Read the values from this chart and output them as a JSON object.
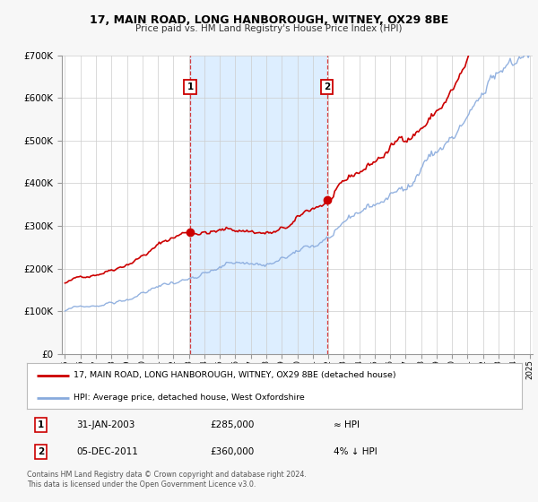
{
  "title": "17, MAIN ROAD, LONG HANBOROUGH, WITNEY, OX29 8BE",
  "subtitle": "Price paid vs. HM Land Registry's House Price Index (HPI)",
  "background_color": "#f7f7f7",
  "plot_bg_color": "#ffffff",
  "shaded_region_color": "#ddeeff",
  "grid_color": "#cccccc",
  "red_line_color": "#cc0000",
  "blue_line_color": "#88aadd",
  "marker_color": "#cc0000",
  "ylim": [
    0,
    700000
  ],
  "yticks": [
    0,
    100000,
    200000,
    300000,
    400000,
    500000,
    600000,
    700000
  ],
  "ytick_labels": [
    "£0",
    "£100K",
    "£200K",
    "£300K",
    "£400K",
    "£500K",
    "£600K",
    "£700K"
  ],
  "year_start": 1995,
  "year_end": 2025,
  "transaction1_date": 2003.08,
  "transaction1_price": 285000,
  "transaction1_label": "1",
  "transaction2_date": 2011.92,
  "transaction2_price": 360000,
  "transaction2_label": "2",
  "legend_red_label": "17, MAIN ROAD, LONG HANBOROUGH, WITNEY, OX29 8BE (detached house)",
  "legend_blue_label": "HPI: Average price, detached house, West Oxfordshire",
  "table_row1_num": "1",
  "table_row1_date": "31-JAN-2003",
  "table_row1_price": "£285,000",
  "table_row1_note": "≈ HPI",
  "table_row2_num": "2",
  "table_row2_date": "05-DEC-2011",
  "table_row2_price": "£360,000",
  "table_row2_note": "4% ↓ HPI",
  "footer": "Contains HM Land Registry data © Crown copyright and database right 2024.\nThis data is licensed under the Open Government Licence v3.0."
}
